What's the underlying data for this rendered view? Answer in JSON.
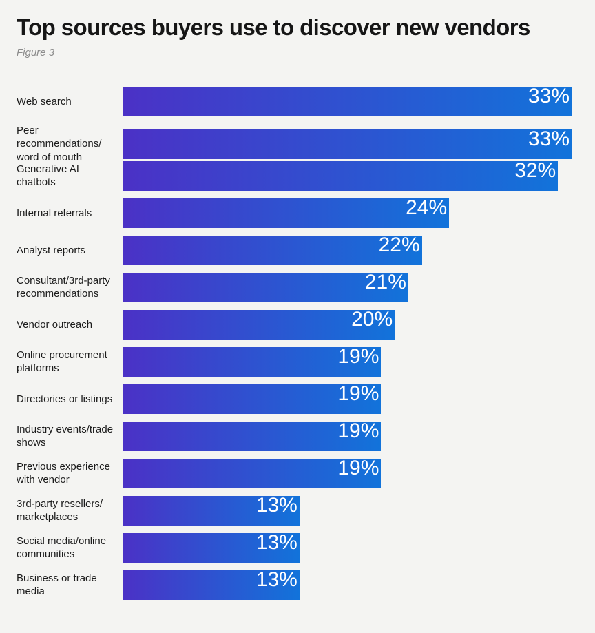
{
  "page": {
    "background": "#f4f4f2"
  },
  "header": {
    "title": "Top sources buyers use to discover new vendors",
    "subtitle": "Figure 3"
  },
  "chart_data": {
    "type": "bar",
    "orientation": "horizontal",
    "title": "Top sources buyers use to discover new vendors",
    "subtitle": "Figure 3",
    "xlabel": "",
    "ylabel": "",
    "xlim": [
      0,
      33
    ],
    "grid": false,
    "legend": false,
    "categories": [
      "Web search",
      "Peer recommendations/\nword of mouth",
      "Generative AI chatbots",
      "Internal referrals",
      "Analyst reports",
      "Consultant/3rd-party\nrecommendations",
      "Vendor outreach",
      "Online procurement\nplatforms",
      "Directories or listings",
      "Industry events/trade\nshows",
      "Previous experience\nwith vendor",
      "3rd-party resellers/\nmarketplaces",
      "Social media/online\ncommunities",
      "Business or trade\nmedia"
    ],
    "values": [
      33,
      33,
      32,
      24,
      22,
      21,
      20,
      19,
      19,
      19,
      19,
      13,
      13,
      13
    ],
    "value_labels": [
      "33%",
      "33%",
      "32%",
      "24%",
      "22%",
      "21%",
      "20%",
      "19%",
      "19%",
      "19%",
      "19%",
      "13%",
      "13%",
      "13%"
    ],
    "bar_gradient_start": "#4b31c6",
    "bar_gradient_end": "#1273da",
    "value_label_color": "#ffffff"
  }
}
